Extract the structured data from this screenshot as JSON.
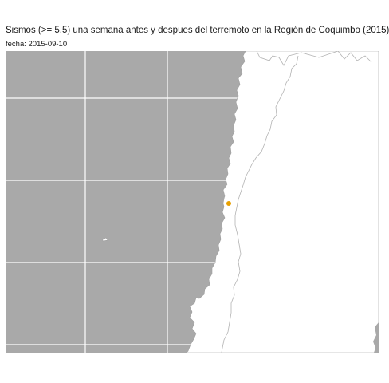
{
  "map": {
    "title": "Sismos (>= 5.5) una semana antes y despues del terremoto en la Región de Coquimbo (2015)",
    "subtitle": "fecha: 2015-09-10",
    "colors": {
      "ocean": "#A9A9A9",
      "land": "#FFFFFF",
      "graticule": "#FFFFFF",
      "coastline": "#9E9E9E",
      "border": "#B3B3B3",
      "earthquake": "#E8A000"
    },
    "earthquakes": [
      {
        "label": "sismo",
        "magnitude_min": 5.5
      }
    ]
  }
}
